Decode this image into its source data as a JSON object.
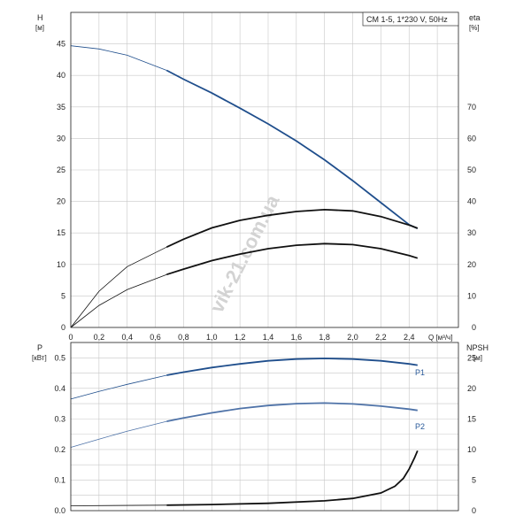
{
  "chart_data": [
    {
      "type": "line",
      "panel": "top",
      "title": "CM 1-5, 1*230 V, 50Hz",
      "watermark": "vik-21.com.ua",
      "x_label": "Q [м³/ч]",
      "x_ticks": [
        "0",
        "0,2",
        "0,4",
        "0,6",
        "0,8",
        "1,0",
        "1,2",
        "1,4",
        "1,6",
        "1,8",
        "2,0",
        "2,2",
        "2,4"
      ],
      "xlim": [
        0,
        2.75
      ],
      "y_left_label": "H",
      "y_left_unit": "[м]",
      "y_left_ticks": [
        "0",
        "5",
        "10",
        "15",
        "20",
        "25",
        "30",
        "35",
        "40",
        "45"
      ],
      "ylim_left": [
        0,
        50
      ],
      "y_right_label": "eta",
      "y_right_unit": "[%]",
      "y_right_ticks": [
        "0",
        "10",
        "20",
        "30",
        "40",
        "50",
        "60",
        "70"
      ],
      "ylim_right": [
        0,
        100
      ],
      "grid": true,
      "series": [
        {
          "axis": "left",
          "color": "#1f4e8c",
          "x": [
            0,
            0.2,
            0.4,
            0.68,
            0.8,
            1.0,
            1.2,
            1.4,
            1.6,
            1.8,
            2.0,
            2.2,
            2.4,
            2.46
          ],
          "y": [
            44.7,
            44.2,
            43.2,
            40.8,
            39.4,
            37.2,
            34.8,
            32.3,
            29.6,
            26.6,
            23.3,
            19.8,
            16.3,
            15.7
          ],
          "op_start": 0.68
        },
        {
          "axis": "right",
          "color": "#111111",
          "x": [
            0,
            0.2,
            0.4,
            0.68,
            0.8,
            1.0,
            1.2,
            1.4,
            1.6,
            1.8,
            2.0,
            2.2,
            2.4,
            2.46
          ],
          "y": [
            0,
            11.5,
            19.3,
            25.5,
            28.0,
            31.6,
            34.0,
            35.6,
            36.8,
            37.4,
            37.0,
            35.2,
            32.5,
            31.5
          ],
          "op_start": 0.68
        },
        {
          "axis": "right",
          "color": "#111111",
          "x": [
            0,
            0.2,
            0.4,
            0.68,
            0.8,
            1.0,
            1.2,
            1.4,
            1.6,
            1.8,
            2.0,
            2.2,
            2.4,
            2.46
          ],
          "y": [
            0,
            7.0,
            12.0,
            16.8,
            18.5,
            21.2,
            23.3,
            25.0,
            26.1,
            26.6,
            26.3,
            25.0,
            22.8,
            22.0
          ],
          "op_start": 0.68
        }
      ]
    },
    {
      "type": "line",
      "panel": "bottom",
      "y_left_label": "P",
      "y_left_unit": "[кВт]",
      "y_left_ticks": [
        "0.0",
        "0.1",
        "0.2",
        "0.3",
        "0.4",
        "0.5"
      ],
      "ylim_left": [
        0,
        0.55
      ],
      "y_right_label": "NPSH",
      "y_right_unit": "[м]",
      "y_right_ticks": [
        "0",
        "5",
        "10",
        "15",
        "20",
        "25"
      ],
      "ylim_right": [
        0,
        27.5
      ],
      "xlim": [
        0,
        2.75
      ],
      "grid": true,
      "series": [
        {
          "name": "P1",
          "axis": "left",
          "color": "#1f4e8c",
          "x": [
            0,
            0.2,
            0.4,
            0.68,
            0.8,
            1.0,
            1.2,
            1.4,
            1.6,
            1.8,
            2.0,
            2.2,
            2.4,
            2.46
          ],
          "y": [
            0.365,
            0.39,
            0.413,
            0.443,
            0.453,
            0.468,
            0.48,
            0.49,
            0.496,
            0.498,
            0.496,
            0.49,
            0.48,
            0.476
          ],
          "op_start": 0.68
        },
        {
          "name": "P2",
          "axis": "left",
          "color": "#4f73a8",
          "x": [
            0,
            0.2,
            0.4,
            0.68,
            0.8,
            1.0,
            1.2,
            1.4,
            1.6,
            1.8,
            2.0,
            2.2,
            2.4,
            2.46
          ],
          "y": [
            0.207,
            0.234,
            0.26,
            0.292,
            0.303,
            0.32,
            0.334,
            0.344,
            0.35,
            0.352,
            0.349,
            0.342,
            0.332,
            0.328
          ],
          "op_start": 0.68
        },
        {
          "axis": "right",
          "color": "#111111",
          "x": [
            0,
            0.68,
            1.0,
            1.4,
            1.8,
            2.0,
            2.2,
            2.3,
            2.36,
            2.4,
            2.44,
            2.46
          ],
          "y": [
            0.8,
            0.9,
            1.0,
            1.2,
            1.6,
            2.0,
            2.9,
            4.0,
            5.3,
            6.8,
            8.7,
            9.8
          ],
          "op_start": 0.68
        }
      ]
    }
  ]
}
